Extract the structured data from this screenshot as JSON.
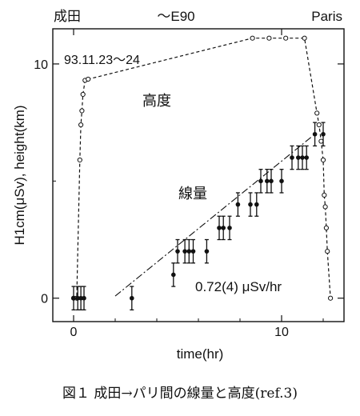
{
  "chart_data": {
    "type": "scatter",
    "title": "",
    "top_labels": {
      "left": "成田",
      "center": "〜E90",
      "right": "Paris"
    },
    "xlabel": "time(hr)",
    "ylabel": "H1cm(μSv), height(km)",
    "xlim": [
      -1.0,
      13.0
    ],
    "ylim": [
      -1.0,
      11.5
    ],
    "xticks": [
      0,
      10
    ],
    "yticks": [
      0,
      10
    ],
    "date_annotation": "93.11.23〜24",
    "fit_annotation": "0.72(4) μSv/hr",
    "series": [
      {
        "name": "高度",
        "marker": "open-circle",
        "line": "dashed",
        "x": [
          0.0,
          0.15,
          0.3,
          0.35,
          0.4,
          0.45,
          0.55,
          0.7,
          8.6,
          9.4,
          10.2,
          11.1,
          11.7,
          11.8,
          11.9,
          12.0,
          12.05,
          12.1,
          12.15,
          12.2,
          12.35
        ],
        "y": [
          0.0,
          0.0,
          5.9,
          7.4,
          8.0,
          8.7,
          9.3,
          9.35,
          11.1,
          11.1,
          11.1,
          11.1,
          7.9,
          7.4,
          6.7,
          5.9,
          4.4,
          3.9,
          3.0,
          2.0,
          0.0
        ]
      },
      {
        "name": "線量",
        "marker": "filled-circle",
        "x": [
          0.0,
          0.2,
          0.35,
          0.5,
          2.8,
          4.8,
          5.0,
          5.35,
          5.55,
          5.75,
          6.4,
          7.0,
          7.2,
          7.5,
          7.9,
          8.5,
          8.8,
          9.0,
          9.3,
          9.5,
          10.0,
          10.5,
          10.8,
          11.0,
          11.2,
          11.6,
          12.0
        ],
        "y": [
          0.0,
          0.0,
          0.0,
          0.0,
          0.0,
          1.0,
          2.0,
          2.0,
          2.0,
          2.0,
          2.0,
          3.0,
          3.0,
          3.0,
          4.0,
          4.0,
          4.0,
          5.0,
          5.0,
          5.0,
          5.0,
          6.0,
          6.0,
          6.0,
          6.0,
          7.0,
          7.0
        ],
        "error": 0.5
      }
    ],
    "fit_line": {
      "style": "dash-dot",
      "slope": 0.72,
      "intercept": -1.35,
      "x": [
        2.0,
        11.5
      ]
    },
    "caption": "図１ 成田→パリ間の線量と高度(ref.3)"
  },
  "labels": {
    "altitude": "高度",
    "dose": "線量"
  }
}
